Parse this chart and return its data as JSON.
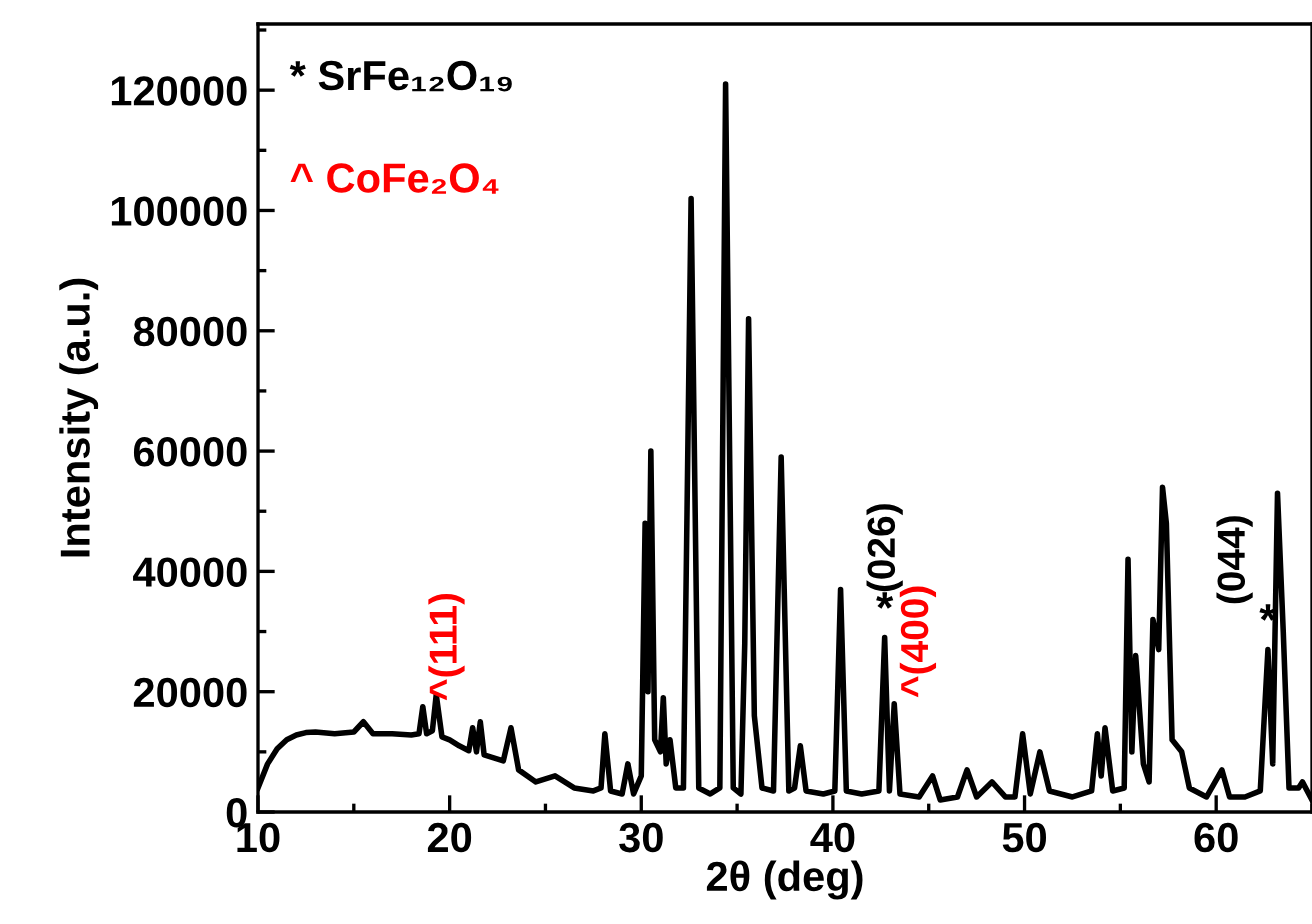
{
  "chart_data": {
    "type": "line",
    "xlabel": "2θ (deg)",
    "ylabel": "Intensity (a.u.)",
    "x": [
      10,
      10.5,
      11,
      11.5,
      12,
      12.5,
      13,
      14,
      15,
      15.5,
      16,
      17,
      18,
      18.4,
      18.6,
      18.8,
      19.1,
      19.3,
      19.6,
      20,
      20.5,
      21,
      21.2,
      21.4,
      21.6,
      21.8,
      22.3,
      22.8,
      23.2,
      23.6,
      24.5,
      25.5,
      26.5,
      27.5,
      27.9,
      28.1,
      28.4,
      29,
      29.3,
      29.6,
      30,
      30.2,
      30.35,
      30.5,
      30.7,
      31,
      31.15,
      31.3,
      31.5,
      31.8,
      32.2,
      32.6,
      33,
      33.6,
      34.1,
      34.4,
      34.8,
      35.2,
      35.4,
      35.6,
      35.9,
      36.3,
      36.9,
      37.3,
      37.7,
      38,
      38.3,
      38.6,
      39.5,
      40.1,
      40.4,
      40.7,
      41.5,
      42.4,
      42.7,
      42.95,
      43.2,
      43.5,
      44.5,
      45.2,
      45.6,
      46.5,
      47,
      47.5,
      48.3,
      49,
      49.5,
      49.9,
      50.3,
      50.8,
      51.3,
      52.5,
      53.5,
      53.8,
      54,
      54.2,
      54.6,
      55.2,
      55.4,
      55.6,
      55.8,
      56.2,
      56.5,
      56.7,
      57,
      57.2,
      57.4,
      57.7,
      58.2,
      58.6,
      59.5,
      60.3,
      60.7,
      61.5,
      62.3,
      62.7,
      62.95,
      63.2,
      63.5,
      63.8,
      64.3,
      64.5,
      65
    ],
    "series": [
      {
        "color": "#000000",
        "values": [
          4000,
          8000,
          10500,
          12000,
          12800,
          13200,
          13300,
          13000,
          13300,
          15000,
          13000,
          13000,
          12800,
          13000,
          17500,
          13000,
          13500,
          19500,
          12500,
          12000,
          11000,
          10200,
          14000,
          10000,
          15000,
          9500,
          9000,
          8500,
          14000,
          7000,
          5000,
          6000,
          4000,
          3500,
          4000,
          13000,
          3500,
          3000,
          8000,
          3000,
          6000,
          48000,
          20000,
          60000,
          12000,
          10000,
          19000,
          8000,
          12000,
          4000,
          4000,
          102000,
          4000,
          3000,
          4000,
          121000,
          4000,
          3000,
          28000,
          82000,
          16000,
          4000,
          3500,
          59000,
          3500,
          4000,
          11000,
          3500,
          3000,
          3500,
          37000,
          3500,
          3000,
          3500,
          29000,
          3500,
          18000,
          3000,
          2500,
          6000,
          2000,
          2500,
          7000,
          2500,
          5000,
          2500,
          2500,
          13000,
          3000,
          10000,
          3500,
          2500,
          3500,
          13000,
          6000,
          14000,
          3500,
          4000,
          42000,
          10000,
          26000,
          8000,
          5000,
          32000,
          27000,
          54000,
          48000,
          12000,
          10000,
          4000,
          2500,
          7000,
          2500,
          2500,
          3500,
          27000,
          8000,
          53000,
          30000,
          4000,
          4000,
          5000,
          2000
        ]
      }
    ],
    "xlim": [
      10,
      65
    ],
    "ylim": [
      0,
      131000
    ],
    "xticks": [
      10,
      20,
      30,
      40,
      50,
      60
    ],
    "yticks": [
      0,
      20000,
      40000,
      60000,
      80000,
      100000,
      120000
    ],
    "annotations": [
      "* SrFe₁₂O₁₉",
      "^ CoFe₂O₄",
      {
        "text": "^(111)",
        "x": 18.6,
        "y": 17500
      },
      {
        "text": "*",
        "x": 42.7,
        "y": 29000
      },
      {
        "text": "(026)",
        "x": 42.7,
        "y": 29000
      },
      {
        "text": "^(400)",
        "x": 43.2,
        "y": 18000
      },
      {
        "text": "*",
        "x": 62.7,
        "y": 27000
      },
      {
        "text": "(044)",
        "x": 62.7,
        "y": 27000
      }
    ],
    "grid": false,
    "marker": "none",
    "line_style": "solid"
  }
}
